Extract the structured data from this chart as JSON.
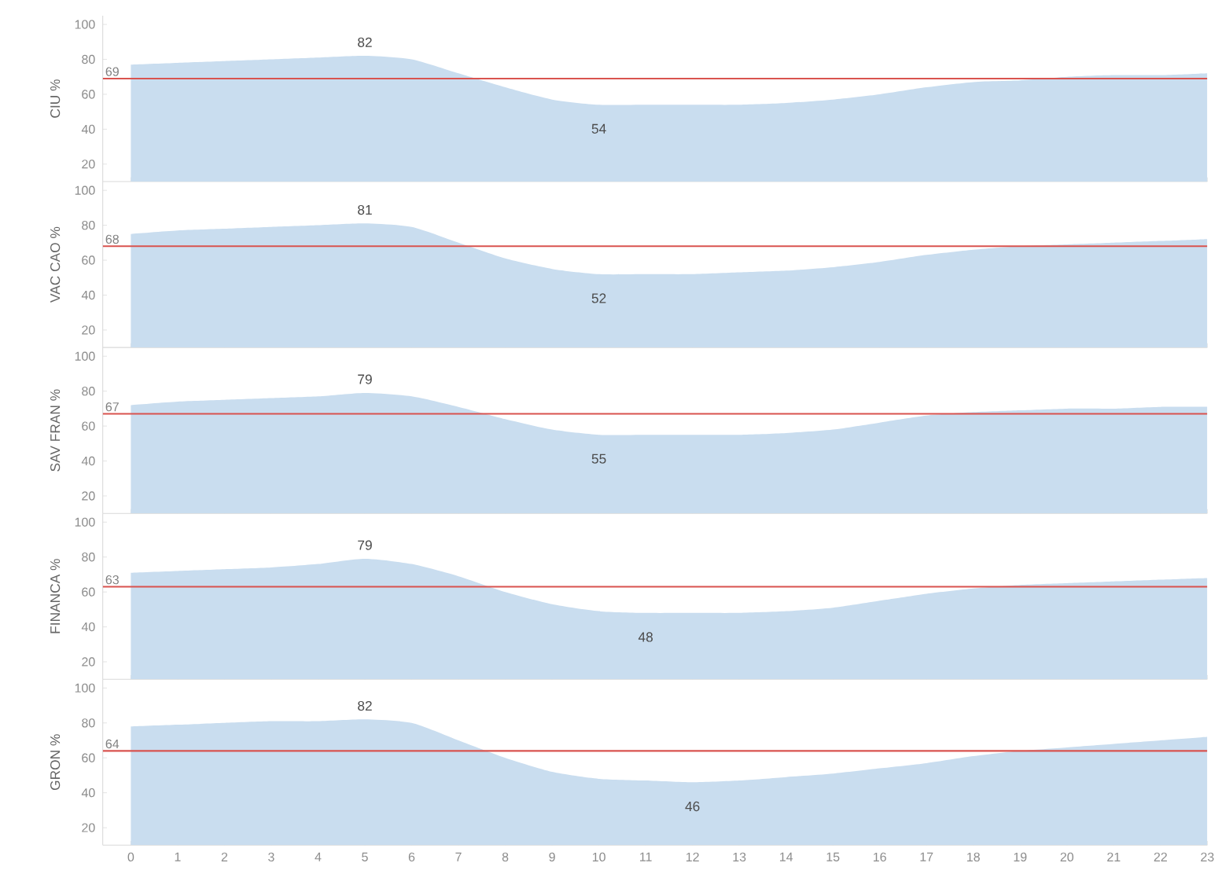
{
  "chart_data": [
    {
      "type": "area",
      "ylabel": "CIU %",
      "x": [
        0,
        1,
        2,
        3,
        4,
        5,
        6,
        7,
        8,
        9,
        10,
        11,
        12,
        13,
        14,
        15,
        16,
        17,
        18,
        19,
        20,
        21,
        22,
        23
      ],
      "xlim": [
        -0.6,
        23
      ],
      "ylim": [
        10,
        105
      ],
      "xticks": [
        0,
        1,
        2,
        3,
        4,
        5,
        6,
        7,
        8,
        9,
        10,
        11,
        12,
        13,
        14,
        15,
        16,
        17,
        18,
        19,
        20,
        21,
        22,
        23
      ],
      "yticks": [
        20,
        40,
        60,
        80,
        100
      ],
      "tick_labels": "y",
      "series": [
        {
          "color": "#c9ddef",
          "values": [
            77,
            78,
            79,
            80,
            81,
            82,
            80,
            72,
            64,
            57,
            54,
            54,
            54,
            54,
            55,
            57,
            60,
            64,
            67,
            68,
            70,
            71,
            71,
            72
          ]
        }
      ],
      "ref_lines": [
        {
          "axis": "y",
          "value": 69,
          "label": "69",
          "color": "#d9534f"
        }
      ],
      "annotations": [
        {
          "text": "82",
          "x": 5,
          "y": 82
        },
        {
          "text": "54",
          "x": 10,
          "y": 54
        }
      ]
    },
    {
      "type": "area",
      "ylabel": "VAC CAO %",
      "x": [
        0,
        1,
        2,
        3,
        4,
        5,
        6,
        7,
        8,
        9,
        10,
        11,
        12,
        13,
        14,
        15,
        16,
        17,
        18,
        19,
        20,
        21,
        22,
        23
      ],
      "xlim": [
        -0.6,
        23
      ],
      "ylim": [
        10,
        105
      ],
      "xticks": [
        0,
        1,
        2,
        3,
        4,
        5,
        6,
        7,
        8,
        9,
        10,
        11,
        12,
        13,
        14,
        15,
        16,
        17,
        18,
        19,
        20,
        21,
        22,
        23
      ],
      "yticks": [
        20,
        40,
        60,
        80,
        100
      ],
      "tick_labels": "y",
      "series": [
        {
          "color": "#c9ddef",
          "values": [
            75,
            77,
            78,
            79,
            80,
            81,
            79,
            70,
            61,
            55,
            52,
            52,
            52,
            53,
            54,
            56,
            59,
            63,
            66,
            68,
            69,
            70,
            71,
            72
          ]
        }
      ],
      "ref_lines": [
        {
          "axis": "y",
          "value": 68,
          "label": "68",
          "color": "#d9534f"
        }
      ],
      "annotations": [
        {
          "text": "81",
          "x": 5,
          "y": 81
        },
        {
          "text": "52",
          "x": 10,
          "y": 52
        }
      ]
    },
    {
      "type": "area",
      "ylabel": "SAV FRAN %",
      "x": [
        0,
        1,
        2,
        3,
        4,
        5,
        6,
        7,
        8,
        9,
        10,
        11,
        12,
        13,
        14,
        15,
        16,
        17,
        18,
        19,
        20,
        21,
        22,
        23
      ],
      "xlim": [
        -0.6,
        23
      ],
      "ylim": [
        10,
        105
      ],
      "xticks": [
        0,
        1,
        2,
        3,
        4,
        5,
        6,
        7,
        8,
        9,
        10,
        11,
        12,
        13,
        14,
        15,
        16,
        17,
        18,
        19,
        20,
        21,
        22,
        23
      ],
      "yticks": [
        20,
        40,
        60,
        80,
        100
      ],
      "tick_labels": "y",
      "series": [
        {
          "color": "#c9ddef",
          "values": [
            72,
            74,
            75,
            76,
            77,
            79,
            77,
            71,
            64,
            58,
            55,
            55,
            55,
            55,
            56,
            58,
            62,
            66,
            68,
            69,
            70,
            70,
            71,
            71
          ]
        }
      ],
      "ref_lines": [
        {
          "axis": "y",
          "value": 67,
          "label": "67",
          "color": "#d9534f"
        }
      ],
      "annotations": [
        {
          "text": "79",
          "x": 5,
          "y": 79
        },
        {
          "text": "55",
          "x": 10,
          "y": 55
        }
      ]
    },
    {
      "type": "area",
      "ylabel": "FINANCA %",
      "x": [
        0,
        1,
        2,
        3,
        4,
        5,
        6,
        7,
        8,
        9,
        10,
        11,
        12,
        13,
        14,
        15,
        16,
        17,
        18,
        19,
        20,
        21,
        22,
        23
      ],
      "xlim": [
        -0.6,
        23
      ],
      "ylim": [
        10,
        105
      ],
      "xticks": [
        0,
        1,
        2,
        3,
        4,
        5,
        6,
        7,
        8,
        9,
        10,
        11,
        12,
        13,
        14,
        15,
        16,
        17,
        18,
        19,
        20,
        21,
        22,
        23
      ],
      "yticks": [
        20,
        40,
        60,
        80,
        100
      ],
      "tick_labels": "y",
      "series": [
        {
          "color": "#c9ddef",
          "values": [
            71,
            72,
            73,
            74,
            76,
            79,
            76,
            69,
            60,
            53,
            49,
            48,
            48,
            48,
            49,
            51,
            55,
            59,
            62,
            64,
            65,
            66,
            67,
            68
          ]
        }
      ],
      "ref_lines": [
        {
          "axis": "y",
          "value": 63,
          "label": "63",
          "color": "#d9534f"
        }
      ],
      "annotations": [
        {
          "text": "79",
          "x": 5,
          "y": 79
        },
        {
          "text": "48",
          "x": 11,
          "y": 48
        }
      ]
    },
    {
      "type": "area",
      "ylabel": "GRON %",
      "x": [
        0,
        1,
        2,
        3,
        4,
        5,
        6,
        7,
        8,
        9,
        10,
        11,
        12,
        13,
        14,
        15,
        16,
        17,
        18,
        19,
        20,
        21,
        22,
        23
      ],
      "xlim": [
        -0.6,
        23
      ],
      "ylim": [
        10,
        105
      ],
      "xticks": [
        0,
        1,
        2,
        3,
        4,
        5,
        6,
        7,
        8,
        9,
        10,
        11,
        12,
        13,
        14,
        15,
        16,
        17,
        18,
        19,
        20,
        21,
        22,
        23
      ],
      "yticks": [
        20,
        40,
        60,
        80,
        100
      ],
      "series": [
        {
          "color": "#c9ddef",
          "values": [
            78,
            79,
            80,
            81,
            81,
            82,
            80,
            70,
            60,
            52,
            48,
            47,
            46,
            47,
            49,
            51,
            54,
            57,
            61,
            64,
            66,
            68,
            70,
            72
          ]
        }
      ],
      "ref_lines": [
        {
          "axis": "y",
          "value": 64,
          "label": "64",
          "color": "#d9534f"
        }
      ],
      "annotations": [
        {
          "text": "82",
          "x": 5,
          "y": 82
        },
        {
          "text": "46",
          "x": 12,
          "y": 46
        }
      ]
    }
  ]
}
